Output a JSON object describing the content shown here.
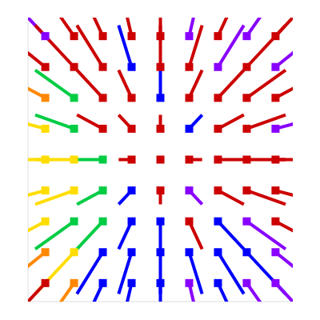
{
  "chart_data": {
    "type": "quiver",
    "x": [
      -4,
      -3,
      -2,
      -1,
      0,
      1,
      2,
      3,
      4
    ],
    "y": [
      4,
      3,
      2,
      1,
      0,
      -1,
      -2,
      -3,
      -4
    ],
    "u": [
      [
        -1.8,
        -1.35,
        -0.9,
        -0.45,
        0,
        0.45,
        0.9,
        1.35,
        1.8
      ],
      [
        -1.8,
        -1.35,
        -0.9,
        -0.45,
        0,
        0.45,
        0.9,
        1.35,
        1.8
      ],
      [
        -1.8,
        -1.35,
        -0.9,
        -0.45,
        0,
        0.45,
        0.9,
        1.35,
        1.8
      ],
      [
        -1.8,
        -1.35,
        -0.9,
        -0.45,
        0,
        0.45,
        0.9,
        1.35,
        1.8
      ],
      [
        -1.8,
        -1.35,
        -0.9,
        -0.45,
        0,
        0.45,
        0.9,
        1.35,
        1.8
      ],
      [
        -1.8,
        -1.35,
        -0.9,
        -0.45,
        0,
        0.45,
        0.9,
        1.35,
        1.8
      ],
      [
        -1.8,
        -1.35,
        -0.9,
        -0.45,
        0,
        0.45,
        0.9,
        1.35,
        1.8
      ],
      [
        -1.8,
        -1.35,
        -0.9,
        -0.45,
        0,
        0.45,
        0.9,
        1.35,
        1.8
      ],
      [
        -1.8,
        -1.35,
        -0.9,
        -0.45,
        0,
        0.45,
        0.9,
        1.35,
        1.8
      ]
    ],
    "v": [
      [
        1.8,
        1.8,
        1.8,
        1.8,
        1.8,
        1.8,
        1.8,
        1.8,
        1.8
      ],
      [
        1.35,
        1.35,
        1.35,
        1.35,
        1.35,
        1.35,
        1.35,
        1.35,
        1.35
      ],
      [
        0.9,
        0.9,
        0.9,
        0.9,
        0.9,
        0.9,
        0.9,
        0.9,
        0.9
      ],
      [
        0.45,
        0.45,
        0.45,
        0.45,
        0.45,
        0.45,
        0.45,
        0.45,
        0.45
      ],
      [
        0,
        0,
        0,
        0,
        0,
        0,
        0,
        0,
        0
      ],
      [
        -0.45,
        -0.45,
        -0.45,
        -0.45,
        -0.45,
        -0.45,
        -0.45,
        -0.45,
        -0.45
      ],
      [
        -0.9,
        -0.9,
        -0.9,
        -0.9,
        -0.9,
        -0.9,
        -0.9,
        -0.9,
        -0.9
      ],
      [
        -1.35,
        -1.35,
        -1.35,
        -1.35,
        -1.35,
        -1.35,
        -1.35,
        -1.35,
        -1.35
      ],
      [
        -1.8,
        -1.8,
        -1.8,
        -1.8,
        -1.8,
        -1.8,
        -1.8,
        -1.8,
        -1.8
      ]
    ],
    "colors": [
      [
        "#8800ff",
        "#cc0000",
        "#cc0000",
        "#cc0000",
        "#cc0000",
        "#8800ff",
        "#cc0000",
        "#8800ff",
        "#cc0000"
      ],
      [
        "#cc0000",
        "#cc0000",
        "#cc0000",
        "#0000ff",
        "#cc0000",
        "#cc0000",
        "#8800ff",
        "#cc0000",
        "#8800ff"
      ],
      [
        "#ff8800",
        "#00cc44",
        "#cc0000",
        "#cc0000",
        "#0000ff",
        "#cc0000",
        "#cc0000",
        "#cc0000",
        "#cc0000"
      ],
      [
        "#ffdd00",
        "#00cc44",
        "#cc0000",
        "#cc0000",
        "#cc0000",
        "#0000ff",
        "#cc0000",
        "#cc0000",
        "#8800ff"
      ],
      [
        "#ffdd00",
        "#ffdd00",
        "#00cc44",
        "#cc0000",
        "#cc0000",
        "#cc0000",
        "#cc0000",
        "#cc0000",
        "#cc0000"
      ],
      [
        "#ffdd00",
        "#ffdd00",
        "#00cc44",
        "#0000ff",
        "#cc0000",
        "#8800ff",
        "#cc0000",
        "#cc0000",
        "#cc0000"
      ],
      [
        "#ffdd00",
        "#00cc44",
        "#00cc44",
        "#0000ff",
        "#0000ff",
        "#cc0000",
        "#0000ff",
        "#8800ff",
        "#cc0000"
      ],
      [
        "#ff8800",
        "#ffdd00",
        "#0000ff",
        "#0000ff",
        "#0000ff",
        "#0000ff",
        "#0000ff",
        "#0000ff",
        "#8800ff"
      ],
      [
        "#cc0000",
        "#ff8800",
        "#0000ff",
        "#0000ff",
        "#0000ff",
        "#8800ff",
        "#0000ff",
        "#8800ff",
        "#8800ff"
      ]
    ],
    "xlim": [
      -4.6,
      4.6
    ],
    "ylim": [
      -4.6,
      4.6
    ],
    "tick_labels": false
  }
}
